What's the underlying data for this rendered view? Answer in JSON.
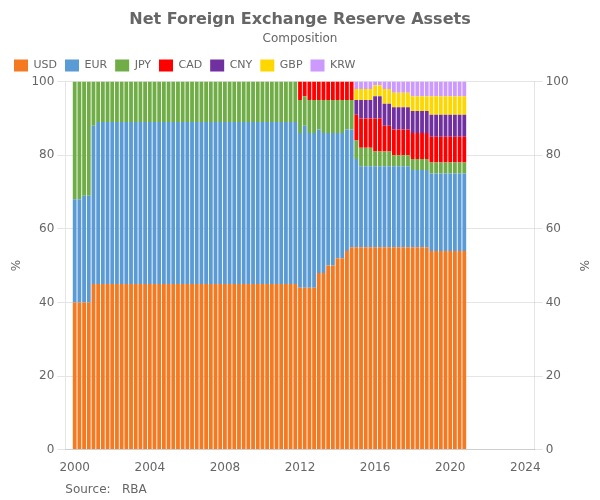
{
  "chart_data": {
    "type": "bar",
    "title": "Net Foreign Exchange Reserve Assets",
    "subtitle": "Composition",
    "source": "Source:   RBA",
    "ylabel": "%",
    "y2label": "%",
    "stacked": true,
    "grid": true,
    "legend": "upper left",
    "xlim": [
      1999.5,
      2024.5
    ],
    "xticks": [
      2000,
      2004,
      2008,
      2012,
      2016,
      2020,
      2024
    ],
    "ylim": [
      0,
      100
    ],
    "yticks": [
      0,
      20,
      40,
      60,
      80,
      100
    ],
    "y2lim": [
      0,
      100
    ],
    "y2ticks": [
      0,
      20,
      40,
      60,
      80,
      100
    ],
    "x": [
      2000,
      2000.25,
      2000.5,
      2000.75,
      2001,
      2001.25,
      2001.5,
      2001.75,
      2002,
      2002.25,
      2002.5,
      2002.75,
      2003,
      2003.25,
      2003.5,
      2003.75,
      2004,
      2004.25,
      2004.5,
      2004.75,
      2005,
      2005.25,
      2005.5,
      2005.75,
      2006,
      2006.25,
      2006.5,
      2006.75,
      2007,
      2007.25,
      2007.5,
      2007.75,
      2008,
      2008.25,
      2008.5,
      2008.75,
      2009,
      2009.25,
      2009.5,
      2009.75,
      2010,
      2010.25,
      2010.5,
      2010.75,
      2011,
      2011.25,
      2011.5,
      2011.75,
      2012,
      2012.25,
      2012.5,
      2012.75,
      2013,
      2013.25,
      2013.5,
      2013.75,
      2014,
      2014.25,
      2014.5,
      2014.75,
      2015,
      2015.25,
      2015.5,
      2015.75,
      2016,
      2016.25,
      2016.5,
      2016.75,
      2017,
      2017.25,
      2017.5,
      2017.75,
      2018,
      2018.25,
      2018.5,
      2018.75,
      2019,
      2019.25,
      2019.5,
      2019.75,
      2020,
      2020.25,
      2020.5,
      2020.75
    ],
    "series": [
      {
        "name": "USD",
        "color": "#F47920",
        "values": [
          40,
          40,
          40,
          40,
          45,
          45,
          45,
          45,
          45,
          45,
          45,
          45,
          45,
          45,
          45,
          45,
          45,
          45,
          45,
          45,
          45,
          45,
          45,
          45,
          45,
          45,
          45,
          45,
          45,
          45,
          45,
          45,
          45,
          45,
          45,
          45,
          45,
          45,
          45,
          45,
          45,
          45,
          45,
          45,
          45,
          45,
          45,
          45,
          44,
          44,
          44,
          44,
          48,
          48,
          50,
          50,
          52,
          52,
          54,
          55,
          55,
          55,
          55,
          55,
          55,
          55,
          55,
          55,
          55,
          55,
          55,
          55,
          55,
          55,
          55,
          55,
          54,
          54,
          54,
          54,
          54,
          54,
          54,
          54
        ]
      },
      {
        "name": "EUR",
        "color": "#5B9BD5",
        "values": [
          28,
          28,
          29,
          29,
          43,
          44,
          44,
          44,
          44,
          44,
          44,
          44,
          44,
          44,
          44,
          44,
          44,
          44,
          44,
          44,
          44,
          44,
          44,
          44,
          44,
          44,
          44,
          44,
          44,
          44,
          44,
          44,
          44,
          44,
          44,
          44,
          44,
          44,
          44,
          44,
          44,
          44,
          44,
          44,
          44,
          44,
          44,
          44,
          42,
          44,
          42,
          42,
          39,
          38,
          36,
          36,
          34,
          34,
          33,
          32,
          24,
          22,
          22,
          22,
          22,
          22,
          22,
          22,
          22,
          22,
          22,
          22,
          21,
          21,
          21,
          21,
          21,
          21,
          21,
          21,
          21,
          21,
          21,
          21
        ]
      },
      {
        "name": "JPY",
        "color": "#70AD47",
        "values": [
          32,
          32,
          31,
          31,
          12,
          11,
          11,
          11,
          11,
          11,
          11,
          11,
          11,
          11,
          11,
          11,
          11,
          11,
          11,
          11,
          11,
          11,
          11,
          11,
          11,
          11,
          11,
          11,
          11,
          11,
          11,
          11,
          11,
          11,
          11,
          11,
          11,
          11,
          11,
          11,
          11,
          11,
          11,
          11,
          11,
          11,
          11,
          11,
          9,
          8,
          9,
          9,
          8,
          9,
          9,
          9,
          9,
          9,
          8,
          8,
          5,
          5,
          5,
          5,
          4,
          4,
          4,
          4,
          3,
          3,
          3,
          3,
          3,
          3,
          3,
          3,
          3,
          3,
          3,
          3,
          3,
          3,
          3,
          3
        ]
      },
      {
        "name": "CAD",
        "color": "#FF0000",
        "values": [
          0,
          0,
          0,
          0,
          0,
          0,
          0,
          0,
          0,
          0,
          0,
          0,
          0,
          0,
          0,
          0,
          0,
          0,
          0,
          0,
          0,
          0,
          0,
          0,
          0,
          0,
          0,
          0,
          0,
          0,
          0,
          0,
          0,
          0,
          0,
          0,
          0,
          0,
          0,
          0,
          0,
          0,
          0,
          0,
          0,
          0,
          0,
          0,
          5,
          4,
          5,
          5,
          5,
          5,
          5,
          5,
          5,
          5,
          5,
          5,
          7,
          8,
          8,
          8,
          9,
          9,
          7,
          7,
          7,
          7,
          7,
          7,
          7,
          7,
          7,
          7,
          7,
          7,
          7,
          7,
          7,
          7,
          7,
          7
        ]
      },
      {
        "name": "CNY",
        "color": "#7030A0",
        "values": [
          0,
          0,
          0,
          0,
          0,
          0,
          0,
          0,
          0,
          0,
          0,
          0,
          0,
          0,
          0,
          0,
          0,
          0,
          0,
          0,
          0,
          0,
          0,
          0,
          0,
          0,
          0,
          0,
          0,
          0,
          0,
          0,
          0,
          0,
          0,
          0,
          0,
          0,
          0,
          0,
          0,
          0,
          0,
          0,
          0,
          0,
          0,
          0,
          0,
          0,
          0,
          0,
          0,
          0,
          0,
          0,
          0,
          0,
          0,
          0,
          4,
          5,
          5,
          5,
          6,
          6,
          6,
          6,
          6,
          6,
          6,
          6,
          6,
          6,
          6,
          6,
          6,
          6,
          6,
          6,
          6,
          6,
          6,
          6
        ]
      },
      {
        "name": "GBP",
        "color": "#FFD700",
        "values": [
          0,
          0,
          0,
          0,
          0,
          0,
          0,
          0,
          0,
          0,
          0,
          0,
          0,
          0,
          0,
          0,
          0,
          0,
          0,
          0,
          0,
          0,
          0,
          0,
          0,
          0,
          0,
          0,
          0,
          0,
          0,
          0,
          0,
          0,
          0,
          0,
          0,
          0,
          0,
          0,
          0,
          0,
          0,
          0,
          0,
          0,
          0,
          0,
          0,
          0,
          0,
          0,
          0,
          0,
          0,
          0,
          0,
          0,
          0,
          0,
          3,
          3,
          3,
          3,
          3,
          3,
          4,
          4,
          4,
          4,
          4,
          4,
          4,
          4,
          4,
          4,
          5,
          5,
          5,
          5,
          5,
          5,
          5,
          5
        ]
      },
      {
        "name": "KRW",
        "color": "#CC99FF",
        "values": [
          0,
          0,
          0,
          0,
          0,
          0,
          0,
          0,
          0,
          0,
          0,
          0,
          0,
          0,
          0,
          0,
          0,
          0,
          0,
          0,
          0,
          0,
          0,
          0,
          0,
          0,
          0,
          0,
          0,
          0,
          0,
          0,
          0,
          0,
          0,
          0,
          0,
          0,
          0,
          0,
          0,
          0,
          0,
          0,
          0,
          0,
          0,
          0,
          0,
          0,
          0,
          0,
          0,
          0,
          0,
          0,
          0,
          0,
          0,
          0,
          2,
          2,
          2,
          2,
          1,
          1,
          2,
          2,
          3,
          3,
          3,
          3,
          4,
          4,
          4,
          4,
          4,
          4,
          4,
          4,
          4,
          4,
          4,
          4
        ]
      }
    ]
  }
}
